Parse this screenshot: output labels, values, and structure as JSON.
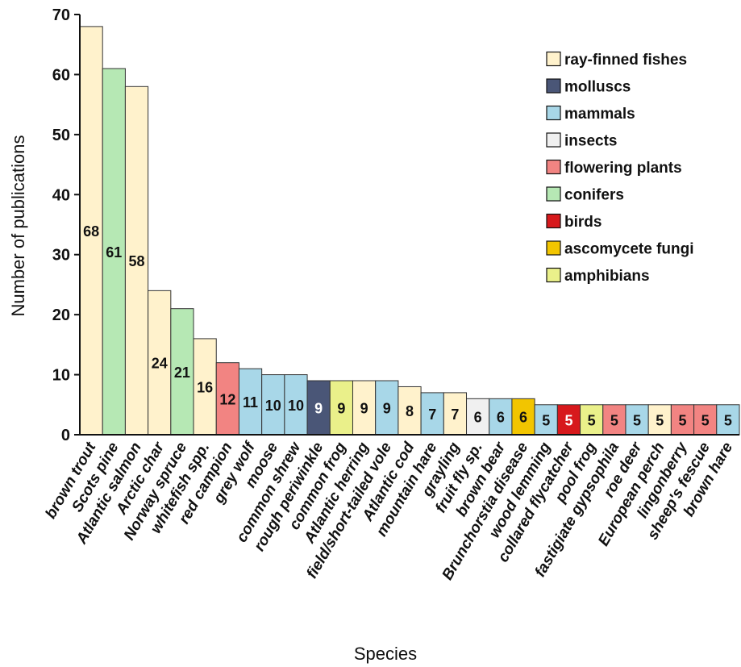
{
  "chart_data": {
    "type": "bar",
    "xlabel": "Species",
    "ylabel": "Number of publications",
    "ylim": [
      0,
      70
    ],
    "yticks": [
      0,
      10,
      20,
      30,
      40,
      50,
      60,
      70
    ],
    "grid": false,
    "legend_position": "top-right",
    "groups": [
      {
        "name": "ray-finned fishes",
        "color": "#FFF2CC"
      },
      {
        "name": "molluscs",
        "color": "#4A5677"
      },
      {
        "name": "mammals",
        "color": "#A8D7E8"
      },
      {
        "name": "insects",
        "color": "#F0F0F0"
      },
      {
        "name": "flowering plants",
        "color": "#F28482"
      },
      {
        "name": "conifers",
        "color": "#B6E8B4"
      },
      {
        "name": "birds",
        "color": "#D7191C"
      },
      {
        "name": "ascomycete fungi",
        "color": "#F2C500"
      },
      {
        "name": "amphibians",
        "color": "#EAF08A"
      }
    ],
    "categories": [
      "brown trout",
      "Scots pine",
      "Atlantic salmon",
      "Arctic char",
      "Norway spruce",
      "whitefish spp.",
      "red campion",
      "grey wolf",
      "moose",
      "common shrew",
      "rough periwinkle",
      "common frog",
      "Atlantic herring",
      "field/short-tailed vole",
      "Atlantic cod",
      "mountain hare",
      "grayling",
      "fruit fly sp.",
      "brown bear",
      "Brunchorstia disease",
      "wood lemming",
      "collared flycatcher",
      "pool frog",
      "fastigiate gypsophila",
      "roe deer",
      "European perch",
      "lingonberry",
      "sheep's fescue",
      "brown hare"
    ],
    "values": [
      68,
      61,
      58,
      24,
      21,
      16,
      12,
      11,
      10,
      10,
      9,
      9,
      9,
      9,
      8,
      7,
      7,
      6,
      6,
      6,
      5,
      5,
      5,
      5,
      5,
      5,
      5,
      5,
      5
    ],
    "category_groups": [
      "ray-finned fishes",
      "conifers",
      "ray-finned fishes",
      "ray-finned fishes",
      "conifers",
      "ray-finned fishes",
      "flowering plants",
      "mammals",
      "mammals",
      "mammals",
      "molluscs",
      "amphibians",
      "ray-finned fishes",
      "mammals",
      "ray-finned fishes",
      "mammals",
      "ray-finned fishes",
      "insects",
      "mammals",
      "ascomycete fungi",
      "mammals",
      "birds",
      "amphibians",
      "flowering plants",
      "mammals",
      "ray-finned fishes",
      "flowering plants",
      "flowering plants",
      "mammals"
    ]
  }
}
